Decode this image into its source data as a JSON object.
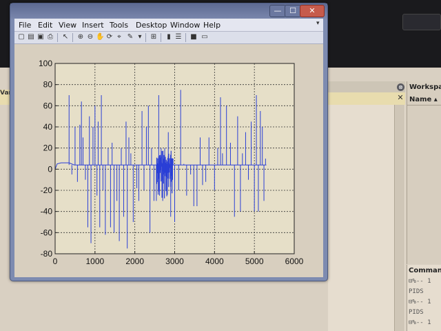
{
  "window": {
    "menus": [
      "File",
      "Edit",
      "View",
      "Insert",
      "Tools",
      "Desktop",
      "Window",
      "Help"
    ],
    "title_buttons": {
      "minimize": "—",
      "maximize": "☐",
      "close": "✕"
    },
    "toolbar_icons": [
      "new-figure-icon",
      "open-file-icon",
      "save-icon",
      "print-icon",
      "edit-plot-icon",
      "zoom-in-icon",
      "zoom-out-icon",
      "pan-icon",
      "rotate-3d-icon",
      "data-cursor-icon",
      "brush-icon",
      "link-plot-icon",
      "colorbar-icon",
      "legend-icon",
      "hide-plot-tools-icon",
      "show-plot-tools-icon"
    ]
  },
  "background": {
    "left_tab_label": "Vari",
    "workspace_title": "Workspace",
    "workspace_column": "Name ▴",
    "command_history_title": "Command",
    "command_history_lines": [
      "⊟%-- 1",
      "  PIDS",
      "⊟%-- 1",
      "  PIDS",
      "⊟%-- 1"
    ],
    "panel_close_glyph": "✕",
    "panel_dock_glyph": "⊗"
  },
  "plot": {
    "line_color": "#2a3fd6",
    "axes_bg": "#e6dfc8"
  },
  "chart_data": {
    "type": "line",
    "title": "",
    "xlabel": "",
    "ylabel": "",
    "xlim": [
      0,
      6000
    ],
    "ylim": [
      -80,
      100
    ],
    "xticks": [
      0,
      1000,
      2000,
      3000,
      4000,
      5000,
      6000
    ],
    "yticks": [
      -80,
      -60,
      -40,
      -20,
      0,
      20,
      40,
      60,
      80,
      100
    ],
    "grid": true,
    "series": [
      {
        "baseline_segments": [
          [
            0,
            0
          ],
          [
            50,
            5
          ],
          [
            150,
            6
          ],
          [
            350,
            6
          ],
          [
            480,
            4
          ],
          [
            5300,
            4
          ]
        ],
        "spikes": [
          [
            350,
            70
          ],
          [
            420,
            -5
          ],
          [
            500,
            40
          ],
          [
            560,
            -12
          ],
          [
            620,
            42
          ],
          [
            660,
            64
          ],
          [
            700,
            30
          ],
          [
            760,
            -10
          ],
          [
            820,
            -55
          ],
          [
            860,
            50
          ],
          [
            900,
            -70
          ],
          [
            950,
            40
          ],
          [
            1000,
            60
          ],
          [
            1050,
            -25
          ],
          [
            1080,
            45
          ],
          [
            1120,
            -55
          ],
          [
            1160,
            70
          ],
          [
            1200,
            -20
          ],
          [
            1260,
            -62
          ],
          [
            1330,
            20
          ],
          [
            1390,
            -55
          ],
          [
            1430,
            25
          ],
          [
            1480,
            -60
          ],
          [
            1550,
            -30
          ],
          [
            1610,
            -68
          ],
          [
            1660,
            20
          ],
          [
            1720,
            -45
          ],
          [
            1780,
            45
          ],
          [
            1810,
            -75
          ],
          [
            1850,
            30
          ],
          [
            1900,
            15
          ],
          [
            1960,
            -50
          ],
          [
            2050,
            -18
          ],
          [
            2100,
            -30
          ],
          [
            2180,
            55
          ],
          [
            2230,
            -20
          ],
          [
            2290,
            40
          ],
          [
            2340,
            60
          ],
          [
            2380,
            -60
          ],
          [
            2420,
            20
          ],
          [
            2480,
            -30
          ],
          [
            2540,
            -30
          ],
          [
            2600,
            70
          ],
          [
            2620,
            -25
          ],
          [
            2660,
            20
          ],
          [
            2700,
            -30
          ],
          [
            2750,
            20
          ],
          [
            2800,
            -20
          ],
          [
            2840,
            35
          ],
          [
            2900,
            -45
          ],
          [
            2960,
            10
          ],
          [
            3000,
            -50
          ],
          [
            3100,
            -20
          ],
          [
            3150,
            75
          ],
          [
            3230,
            5
          ],
          [
            3300,
            -25
          ],
          [
            3400,
            -5
          ],
          [
            3480,
            -35
          ],
          [
            3560,
            -35
          ],
          [
            3640,
            30
          ],
          [
            3700,
            -15
          ],
          [
            3780,
            -12
          ],
          [
            3860,
            30
          ],
          [
            4000,
            -20
          ],
          [
            4080,
            20
          ],
          [
            4150,
            68
          ],
          [
            4200,
            15
          ],
          [
            4300,
            60
          ],
          [
            4400,
            25
          ],
          [
            4500,
            -45
          ],
          [
            4580,
            50
          ],
          [
            4650,
            -40
          ],
          [
            4700,
            15
          ],
          [
            4780,
            35
          ],
          [
            4850,
            -10
          ],
          [
            4920,
            45
          ],
          [
            5000,
            -40
          ],
          [
            5050,
            70
          ],
          [
            5100,
            -40
          ],
          [
            5150,
            55
          ],
          [
            5200,
            40
          ],
          [
            5240,
            -30
          ],
          [
            5280,
            10
          ]
        ],
        "dense_region": {
          "x_start": 2550,
          "x_end": 2950,
          "y_min": -28,
          "y_max": 18
        }
      }
    ]
  }
}
